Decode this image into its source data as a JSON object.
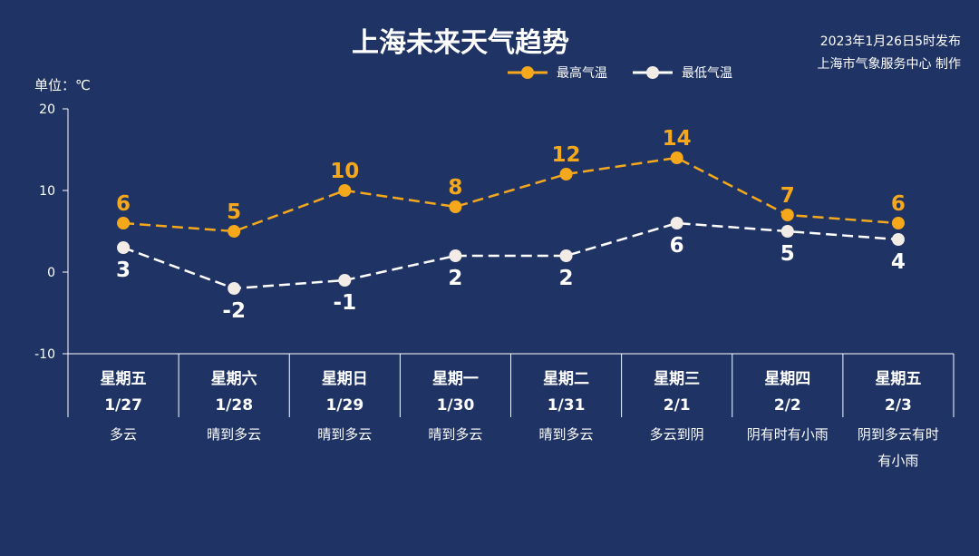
{
  "title": "上海未来天气趋势",
  "publish": {
    "line1": "2023年1月26日5时发布",
    "line2": "上海市气象服务中心 制作"
  },
  "unit_label": "单位：℃",
  "colors": {
    "background": "#1f3464",
    "high": "#f5a81c",
    "low": "#ffffff",
    "low_marker": "#f3ece6",
    "axis": "#ffffff"
  },
  "chart_data": {
    "type": "line",
    "ylim": [
      -10,
      20
    ],
    "yticks": [
      -10,
      0,
      10,
      20
    ],
    "grid": false,
    "legend": "top-right",
    "categories": [
      {
        "weekday": "星期五",
        "date": "1/27",
        "weather": [
          "多云"
        ]
      },
      {
        "weekday": "星期六",
        "date": "1/28",
        "weather": [
          "晴到多云"
        ]
      },
      {
        "weekday": "星期日",
        "date": "1/29",
        "weather": [
          "晴到多云"
        ]
      },
      {
        "weekday": "星期一",
        "date": "1/30",
        "weather": [
          "晴到多云"
        ]
      },
      {
        "weekday": "星期二",
        "date": "1/31",
        "weather": [
          "晴到多云"
        ]
      },
      {
        "weekday": "星期三",
        "date": "2/1",
        "weather": [
          "多云到阴"
        ]
      },
      {
        "weekday": "星期四",
        "date": "2/2",
        "weather": [
          "阴有时有小雨"
        ]
      },
      {
        "weekday": "星期五",
        "date": "2/3",
        "weather": [
          "阴到多云有时",
          "有小雨"
        ]
      }
    ],
    "series": [
      {
        "name": "最高气温",
        "values": [
          6,
          5,
          10,
          8,
          12,
          14,
          7,
          6
        ]
      },
      {
        "name": "最低气温",
        "values": [
          3,
          -2,
          -1,
          2,
          2,
          6,
          5,
          4
        ]
      }
    ]
  }
}
